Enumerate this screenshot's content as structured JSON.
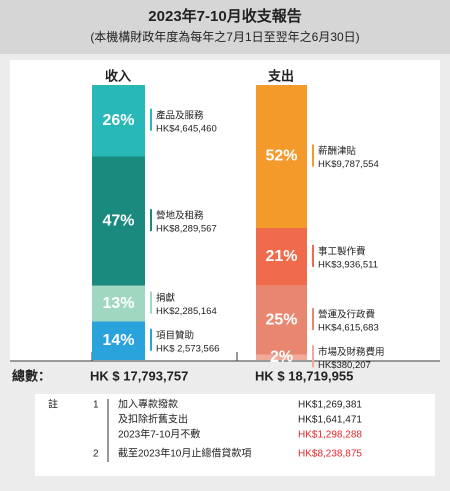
{
  "header": {
    "title": "2023年7-10月收支報告",
    "subtitle": "(本機構財政年度為每年之7月1日至翌年之6月30日)"
  },
  "chart_data": {
    "type": "stacked-bar",
    "bars": [
      {
        "title": "收入",
        "names": [
          "產品及服務",
          "營地及租務",
          "捐獻",
          "項目贊助"
        ],
        "amounts": [
          "HK$4,645,460",
          "HK$8,289,567",
          "HK$2,285,164",
          "HK$ 2,573,566"
        ],
        "values": [
          26,
          47,
          13,
          14
        ],
        "value_labels": [
          "26%",
          "47%",
          "13%",
          "14%"
        ],
        "colors": [
          "#29b8b8",
          "#1a8a7f",
          "#9fd7c0",
          "#2aa3dc"
        ],
        "total": "HK $ 17,793,757"
      },
      {
        "title": "支出",
        "names": [
          "薪酬津貼",
          "事工製作費",
          "營運及行政費",
          "市場及財務費用"
        ],
        "amounts": [
          "HK$9,787,554",
          "HK$3,936,511",
          "HK$4,615,683",
          "HK$380,207"
        ],
        "values": [
          52,
          21,
          25,
          2
        ],
        "value_labels": [
          "52%",
          "21%",
          "25%",
          "2%"
        ],
        "colors": [
          "#f39a2b",
          "#ef6b4b",
          "#e9866f",
          "#f1aa9a"
        ],
        "total": "HK $ 18,719,955"
      }
    ],
    "total_label": "總數："
  },
  "notes": {
    "label": "註",
    "items": [
      {
        "number": "1",
        "lines": [
          {
            "text": "加入專款撥款",
            "amount": "HK$1,269,381"
          },
          {
            "text": "及扣除折舊支出",
            "amount": "HK$1,641,471"
          },
          {
            "text": "2023年7-10月不敷",
            "amount": "HK$1,298,288"
          }
        ]
      },
      {
        "number": "2",
        "lines": [
          {
            "text": "截至2023年10月止總借貸款項",
            "amount": "HK$8,238,875"
          }
        ]
      }
    ]
  }
}
